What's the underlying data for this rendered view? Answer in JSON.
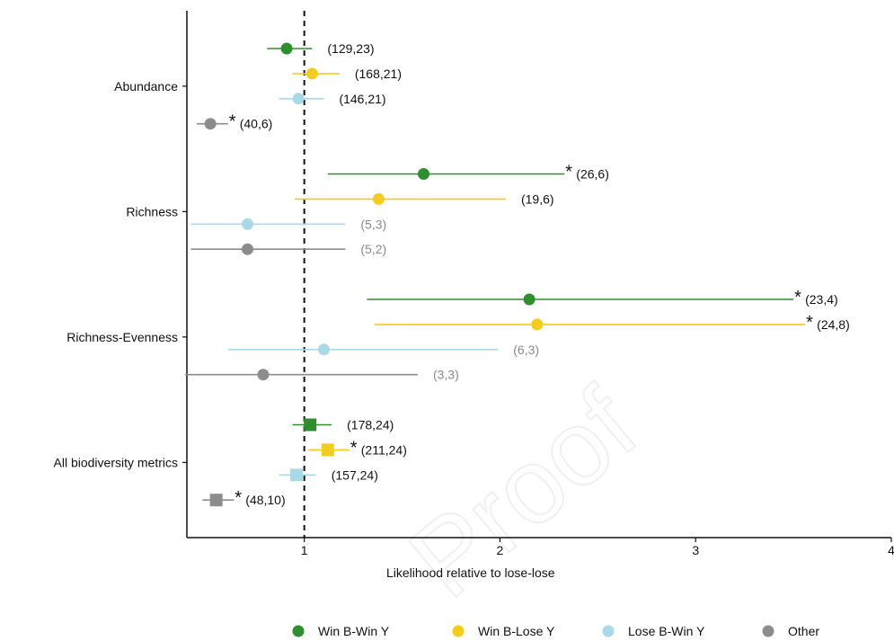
{
  "chart_data": {
    "type": "forest",
    "xlabel": "Likelihood relative to lose-lose",
    "x_ticks": [
      1,
      2,
      3,
      4
    ],
    "x_range": [
      0.4,
      4.0
    ],
    "reference_line": 1,
    "colors": {
      "Win B-Win Y": "#2f8f2f",
      "Win B-Lose Y": "#f2cc1f",
      "Lose B-Win Y": "#a9d9e6",
      "Other": "#8c8c8c"
    },
    "legend": {
      "position": "bottom",
      "entries": [
        "Win B-Win Y",
        "Win B-Lose Y",
        "Lose B-Win Y",
        "Other"
      ]
    },
    "groups": [
      {
        "label": "Abundance",
        "rows": [
          {
            "series": "Win B-Win Y",
            "estimate": 0.91,
            "low": 0.81,
            "high": 1.04,
            "marker": "circle",
            "annotation": "(129,23)",
            "star": false,
            "faded": false
          },
          {
            "series": "Win B-Lose Y",
            "estimate": 1.04,
            "low": 0.94,
            "high": 1.18,
            "marker": "circle",
            "annotation": "(168,21)",
            "star": false,
            "faded": false
          },
          {
            "series": "Lose B-Win Y",
            "estimate": 0.97,
            "low": 0.87,
            "high": 1.1,
            "marker": "circle",
            "annotation": "(146,21)",
            "star": false,
            "faded": false
          },
          {
            "series": "Other",
            "estimate": 0.52,
            "low": 0.45,
            "high": 0.61,
            "marker": "circle",
            "annotation": "(40,6)",
            "star": true,
            "faded": false
          }
        ]
      },
      {
        "label": "Richness",
        "rows": [
          {
            "series": "Win B-Win Y",
            "estimate": 1.61,
            "low": 1.12,
            "high": 2.33,
            "marker": "circle",
            "annotation": "(26,6)",
            "star": true,
            "faded": false
          },
          {
            "series": "Win B-Lose Y",
            "estimate": 1.38,
            "low": 0.95,
            "high": 2.03,
            "marker": "circle",
            "annotation": "(19,6)",
            "star": false,
            "faded": false
          },
          {
            "series": "Lose B-Win Y",
            "estimate": 0.71,
            "low": 0.42,
            "high": 1.21,
            "marker": "circle",
            "annotation": "(5,3)",
            "star": false,
            "faded": true
          },
          {
            "series": "Other",
            "estimate": 0.71,
            "low": 0.42,
            "high": 1.21,
            "marker": "circle",
            "annotation": "(5,2)",
            "star": false,
            "faded": true
          }
        ]
      },
      {
        "label": "Richness-Evenness",
        "rows": [
          {
            "series": "Win B-Win Y",
            "estimate": 2.15,
            "low": 1.32,
            "high": 3.5,
            "marker": "circle",
            "annotation": "(23,4)",
            "star": true,
            "faded": false
          },
          {
            "series": "Win B-Lose Y",
            "estimate": 2.19,
            "low": 1.36,
            "high": 3.56,
            "marker": "circle",
            "annotation": "(24,8)",
            "star": true,
            "faded": false
          },
          {
            "series": "Lose B-Win Y",
            "estimate": 1.1,
            "low": 0.61,
            "high": 1.99,
            "marker": "circle",
            "annotation": "(6,3)",
            "star": false,
            "faded": true
          },
          {
            "series": "Other",
            "estimate": 0.79,
            "low": 0.39,
            "high": 1.58,
            "marker": "circle",
            "annotation": "(3,3)",
            "star": false,
            "faded": true
          }
        ]
      },
      {
        "label": "All biodiversity metrics",
        "rows": [
          {
            "series": "Win B-Win Y",
            "estimate": 1.03,
            "low": 0.94,
            "high": 1.14,
            "marker": "square",
            "annotation": "(178,24)",
            "star": false,
            "faded": false
          },
          {
            "series": "Win B-Lose Y",
            "estimate": 1.12,
            "low": 1.02,
            "high": 1.23,
            "marker": "square",
            "annotation": "(211,24)",
            "star": true,
            "faded": false
          },
          {
            "series": "Lose B-Win Y",
            "estimate": 0.96,
            "low": 0.87,
            "high": 1.06,
            "marker": "square",
            "annotation": "(157,24)",
            "star": false,
            "faded": false
          },
          {
            "series": "Other",
            "estimate": 0.55,
            "low": 0.48,
            "high": 0.64,
            "marker": "square",
            "annotation": "(48,10)",
            "star": true,
            "faded": false
          }
        ]
      }
    ]
  },
  "watermark": "Proof"
}
